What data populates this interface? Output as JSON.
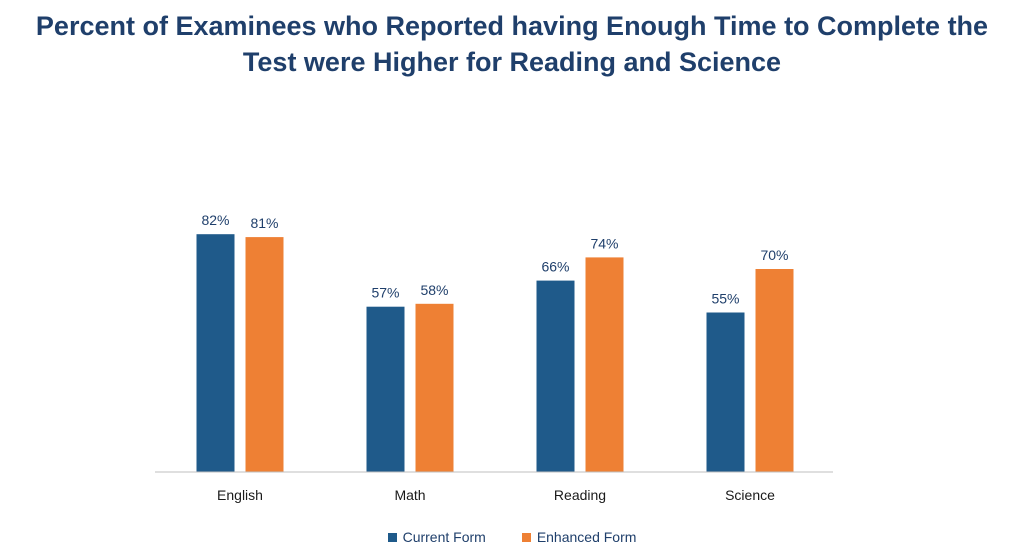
{
  "chart_data": {
    "type": "bar",
    "title": "Percent of Examinees who Reported having Enough Time to Complete the Test were Higher for Reading and Science",
    "title_lines": [
      "Percent of Examinees who Reported having Enough Time to Complete the",
      "Test were Higher for Reading and Science"
    ],
    "categories": [
      "English",
      "Math",
      "Reading",
      "Science"
    ],
    "series": [
      {
        "name": "Current Form",
        "values": [
          82,
          57,
          66,
          55
        ],
        "labels": [
          "82%",
          "57%",
          "66%",
          "55%"
        ],
        "color": "#1f5a8a"
      },
      {
        "name": "Enhanced Form",
        "values": [
          81,
          58,
          74,
          70
        ],
        "labels": [
          "81%",
          "58%",
          "74%",
          "70%"
        ],
        "color": "#ee8034"
      }
    ],
    "xlabel": "",
    "ylabel": "",
    "ylim": [
      0,
      100
    ],
    "grid": false,
    "legend": "bottom"
  }
}
